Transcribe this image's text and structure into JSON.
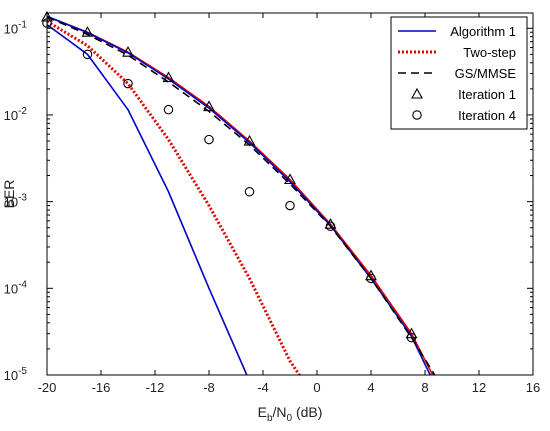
{
  "chart_data": {
    "type": "line",
    "xlabel": "E_b/N_0 (dB)",
    "xlabel_parts": {
      "main": "E",
      "sub1": "b",
      "mid": "/N",
      "sub2": "0",
      "tail": " (dB)"
    },
    "ylabel": "BER",
    "xlim": [
      -20,
      16
    ],
    "ylim": [
      1e-05,
      0.15
    ],
    "yscale": "log",
    "xticks": [
      -20,
      -16,
      -12,
      -8,
      -4,
      0,
      4,
      8,
      12,
      16
    ],
    "xtick_labels": [
      "-20",
      "-16",
      "-12",
      "-8",
      "-4",
      "0",
      "4",
      "8",
      "12",
      "16"
    ],
    "yticks": [
      {
        "value": 1e-05,
        "mantissa": "10",
        "exp": "-5"
      },
      {
        "value": 0.0001,
        "mantissa": "10",
        "exp": "-4"
      },
      {
        "value": 0.001,
        "mantissa": "10",
        "exp": "-3"
      },
      {
        "value": 0.01,
        "mantissa": "10",
        "exp": "-2"
      },
      {
        "value": 0.1,
        "mantissa": "10",
        "exp": "-1"
      }
    ],
    "grid": false,
    "legend_position": "top-right",
    "series": [
      {
        "name": "Algorithm 1",
        "color": "#0000cc",
        "dash": "solid",
        "x": [
          -20,
          -17,
          -14,
          -11,
          -8,
          -5
        ],
        "y": [
          0.11,
          0.05,
          0.0115,
          0.0013,
          0.0001,
          8.5e-06
        ]
      },
      {
        "name": "Two-step",
        "color": "#e00000",
        "dash": "dotted",
        "x": [
          -20,
          -17,
          -14,
          -11,
          -8,
          -5,
          -2,
          -1
        ],
        "y": [
          0.12,
          0.063,
          0.023,
          0.0052,
          0.0009,
          0.00013,
          1.45e-05,
          8.5e-06
        ]
      },
      {
        "name": "GS/MMSE",
        "color": "#000000",
        "dash": "dashed",
        "x": [
          -20,
          -17,
          -14,
          -11,
          -8,
          -5,
          -2,
          1,
          4,
          7,
          9
        ],
        "y": [
          0.135,
          0.085,
          0.049,
          0.024,
          0.011,
          0.0045,
          0.0016,
          0.00052,
          0.00013,
          2.7e-05,
          8.5e-06
        ]
      },
      {
        "name": "Iteration 1",
        "color": "#000000",
        "dash": "none",
        "marker": "triangle",
        "x": [
          -20,
          -17,
          -14,
          -11,
          -8,
          -5,
          -2,
          1,
          4,
          7
        ],
        "y": [
          0.135,
          0.09,
          0.053,
          0.027,
          0.0125,
          0.005,
          0.0018,
          0.00055,
          0.00014,
          3e-05
        ]
      },
      {
        "name": "Iteration 4",
        "color": "#000000",
        "dash": "none",
        "marker": "circle",
        "x": [
          -20,
          -17,
          -14,
          -11,
          -8,
          -5,
          -2,
          1,
          4,
          7
        ],
        "y": [
          0.115,
          0.05,
          0.023,
          0.0115,
          0.0052,
          0.0013,
          0.0009,
          0.00052,
          0.00013,
          2.7e-05
        ]
      }
    ],
    "extra_curves": [
      {
        "id": "iter1-red-curve",
        "color": "#e00000",
        "dash": "solid",
        "x": [
          -20,
          -17,
          -14,
          -11,
          -8,
          -5,
          -2,
          1,
          4,
          7,
          8.8
        ],
        "y": [
          0.137,
          0.09,
          0.053,
          0.027,
          0.0125,
          0.005,
          0.0018,
          0.00055,
          0.00014,
          3e-05,
          8.5e-06
        ]
      },
      {
        "id": "iter1-blue-curve",
        "color": "#0000cc",
        "dash": "solid",
        "x": [
          -20,
          -17,
          -14,
          -11,
          -8,
          -5,
          -2,
          1,
          4,
          7,
          8.6
        ],
        "y": [
          0.137,
          0.089,
          0.052,
          0.026,
          0.012,
          0.0048,
          0.0017,
          0.00053,
          0.00013,
          2.8e-05,
          8.5e-06
        ]
      }
    ]
  }
}
